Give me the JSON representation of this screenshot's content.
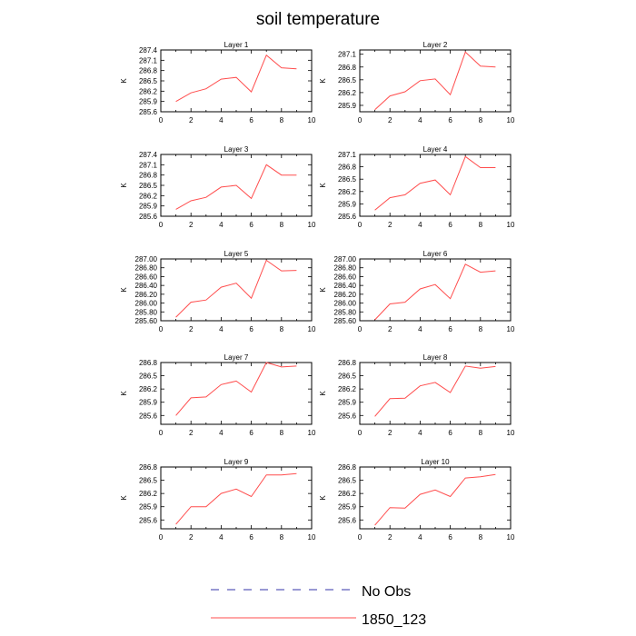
{
  "title": "soil temperature",
  "legend": [
    {
      "label": "No Obs",
      "color": "#3333aa",
      "dashed": true
    },
    {
      "label": "1850_123",
      "color": "#ff4d4d",
      "dashed": false
    }
  ],
  "chart_data": [
    {
      "type": "line",
      "title": "Layer 1",
      "ylabel": "K",
      "x": [
        1,
        2,
        3,
        4,
        5,
        6,
        7,
        8,
        9
      ],
      "xlim": [
        0,
        10
      ],
      "xticks": [
        0,
        2,
        4,
        6,
        8,
        10
      ],
      "ylim": [
        285.6,
        287.4
      ],
      "yticks": [
        "285.6",
        "285.9",
        "286.2",
        "286.5",
        "286.8",
        "287.1",
        "287.4"
      ],
      "series": [
        {
          "name": "1850_123",
          "values": [
            285.9,
            286.15,
            286.27,
            286.55,
            286.6,
            286.18,
            287.25,
            286.88,
            286.85
          ]
        }
      ]
    },
    {
      "type": "line",
      "title": "Layer 2",
      "ylabel": "K",
      "x": [
        1,
        2,
        3,
        4,
        5,
        6,
        7,
        8,
        9
      ],
      "xlim": [
        0,
        10
      ],
      "xticks": [
        0,
        2,
        4,
        6,
        8,
        10
      ],
      "ylim": [
        285.75,
        287.2
      ],
      "yticks": [
        "285.9",
        "286.2",
        "286.5",
        "286.8",
        "287.1"
      ],
      "series": [
        {
          "name": "1850_123",
          "values": [
            285.8,
            286.12,
            286.22,
            286.48,
            286.52,
            286.15,
            287.15,
            286.82,
            286.8
          ]
        }
      ]
    },
    {
      "type": "line",
      "title": "Layer 3",
      "ylabel": "K",
      "x": [
        1,
        2,
        3,
        4,
        5,
        6,
        7,
        8,
        9
      ],
      "xlim": [
        0,
        10
      ],
      "xticks": [
        0,
        2,
        4,
        6,
        8,
        10
      ],
      "ylim": [
        285.6,
        287.4
      ],
      "yticks": [
        "285.6",
        "285.9",
        "286.2",
        "286.5",
        "286.8",
        "287.1",
        "287.4"
      ],
      "series": [
        {
          "name": "1850_123",
          "values": [
            285.8,
            286.05,
            286.15,
            286.45,
            286.5,
            286.12,
            287.1,
            286.8,
            286.8
          ]
        }
      ]
    },
    {
      "type": "line",
      "title": "Layer 4",
      "ylabel": "K",
      "x": [
        1,
        2,
        3,
        4,
        5,
        6,
        7,
        8,
        9
      ],
      "xlim": [
        0,
        10
      ],
      "xticks": [
        0,
        2,
        4,
        6,
        8,
        10
      ],
      "ylim": [
        285.6,
        287.1
      ],
      "yticks": [
        "285.6",
        "285.9",
        "286.2",
        "286.5",
        "286.8",
        "287.1"
      ],
      "series": [
        {
          "name": "1850_123",
          "values": [
            285.75,
            286.05,
            286.12,
            286.4,
            286.48,
            286.12,
            287.05,
            286.78,
            286.78
          ]
        }
      ]
    },
    {
      "type": "line",
      "title": "Layer 5",
      "ylabel": "K",
      "x": [
        1,
        2,
        3,
        4,
        5,
        6,
        7,
        8,
        9
      ],
      "xlim": [
        0,
        10
      ],
      "xticks": [
        0,
        2,
        4,
        6,
        8,
        10
      ],
      "ylim": [
        285.6,
        287.0
      ],
      "yticks": [
        "285.60",
        "285.80",
        "286.00",
        "286.20",
        "286.40",
        "286.60",
        "286.80",
        "287.00"
      ],
      "series": [
        {
          "name": "1850_123",
          "values": [
            285.68,
            286.02,
            286.07,
            286.36,
            286.45,
            286.11,
            286.97,
            286.73,
            286.74
          ]
        }
      ]
    },
    {
      "type": "line",
      "title": "Layer 6",
      "ylabel": "K",
      "x": [
        1,
        2,
        3,
        4,
        5,
        6,
        7,
        8,
        9
      ],
      "xlim": [
        0,
        10
      ],
      "xticks": [
        0,
        2,
        4,
        6,
        8,
        10
      ],
      "ylim": [
        285.6,
        287.0
      ],
      "yticks": [
        "285.60",
        "285.80",
        "286.00",
        "286.20",
        "286.40",
        "286.60",
        "286.80",
        "287.00"
      ],
      "series": [
        {
          "name": "1850_123",
          "values": [
            285.62,
            285.98,
            286.02,
            286.32,
            286.42,
            286.1,
            286.88,
            286.7,
            286.73
          ]
        }
      ]
    },
    {
      "type": "line",
      "title": "Layer 7",
      "ylabel": "K",
      "x": [
        1,
        2,
        3,
        4,
        5,
        6,
        7,
        8,
        9
      ],
      "xlim": [
        0,
        10
      ],
      "xticks": [
        0,
        2,
        4,
        6,
        8,
        10
      ],
      "ylim": [
        285.4,
        286.8
      ],
      "yticks": [
        "285.6",
        "285.9",
        "286.2",
        "286.5",
        "286.8"
      ],
      "series": [
        {
          "name": "1850_123",
          "values": [
            285.6,
            286.0,
            286.02,
            286.3,
            286.38,
            286.13,
            286.8,
            286.7,
            286.72
          ]
        }
      ]
    },
    {
      "type": "line",
      "title": "Layer 8",
      "ylabel": "K",
      "x": [
        1,
        2,
        3,
        4,
        5,
        6,
        7,
        8,
        9
      ],
      "xlim": [
        0,
        10
      ],
      "xticks": [
        0,
        2,
        4,
        6,
        8,
        10
      ],
      "ylim": [
        285.4,
        286.8
      ],
      "yticks": [
        "285.6",
        "285.9",
        "286.2",
        "286.5",
        "286.8"
      ],
      "series": [
        {
          "name": "1850_123",
          "values": [
            285.58,
            285.98,
            285.99,
            286.27,
            286.35,
            286.12,
            286.72,
            286.67,
            286.71
          ]
        }
      ]
    },
    {
      "type": "line",
      "title": "Layer 9",
      "ylabel": "K",
      "x": [
        1,
        2,
        3,
        4,
        5,
        6,
        7,
        8,
        9
      ],
      "xlim": [
        0,
        10
      ],
      "xticks": [
        0,
        2,
        4,
        6,
        8,
        10
      ],
      "ylim": [
        285.4,
        286.8
      ],
      "yticks": [
        "285.6",
        "285.9",
        "286.2",
        "286.5",
        "286.8"
      ],
      "series": [
        {
          "name": "1850_123",
          "values": [
            285.5,
            285.9,
            285.9,
            286.2,
            286.3,
            286.13,
            286.62,
            286.62,
            286.65
          ]
        }
      ]
    },
    {
      "type": "line",
      "title": "Layer 10",
      "ylabel": "K",
      "x": [
        1,
        2,
        3,
        4,
        5,
        6,
        7,
        8,
        9
      ],
      "xlim": [
        0,
        10
      ],
      "xticks": [
        0,
        2,
        4,
        6,
        8,
        10
      ],
      "ylim": [
        285.4,
        286.8
      ],
      "yticks": [
        "285.6",
        "285.9",
        "286.2",
        "286.5",
        "286.8"
      ],
      "series": [
        {
          "name": "1850_123",
          "values": [
            285.48,
            285.88,
            285.87,
            286.18,
            286.28,
            286.13,
            286.55,
            286.58,
            286.63
          ]
        }
      ]
    }
  ]
}
